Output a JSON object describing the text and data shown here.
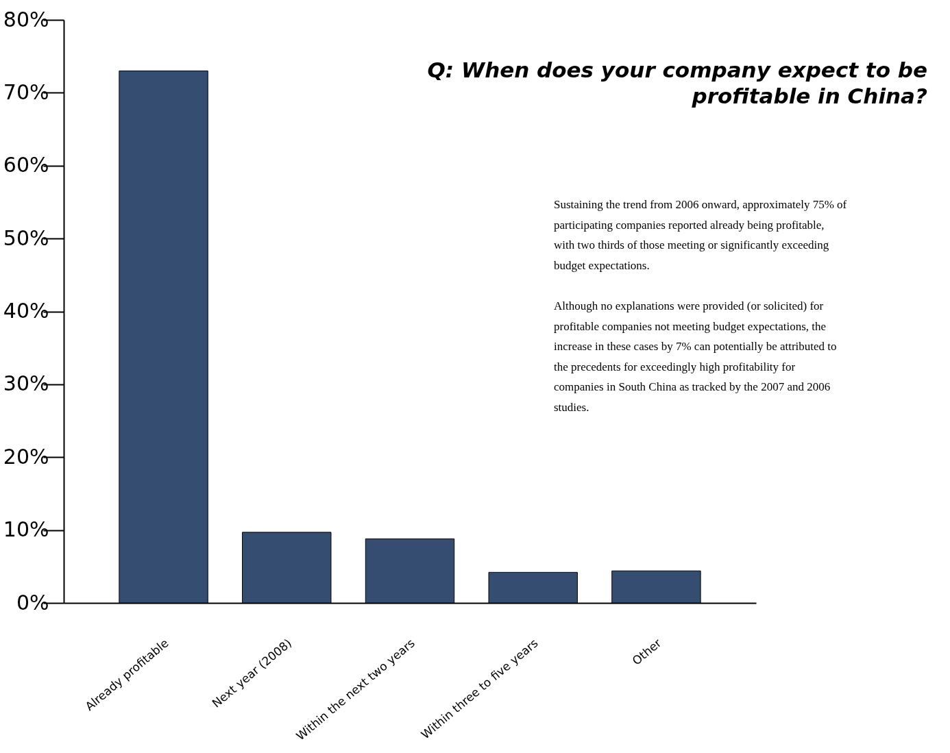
{
  "chart_data": {
    "type": "bar",
    "title": "Q:  When does your company expect to be profitable in China?",
    "categories": [
      "Already profitable",
      "Next year (2008)",
      "Within the next two years",
      "Within three to five years",
      "Other"
    ],
    "values": [
      73,
      9.7,
      8.8,
      4.2,
      4.4
    ],
    "color": "#364d72",
    "ylim": [
      0,
      80
    ],
    "yticks": [
      {
        "value": 0,
        "label": "0%"
      },
      {
        "value": 10,
        "label": "10%"
      },
      {
        "value": 20,
        "label": "20%"
      },
      {
        "value": 30,
        "label": "30%"
      },
      {
        "value": 40,
        "label": "40%"
      },
      {
        "value": 50,
        "label": "50%"
      },
      {
        "value": 60,
        "label": "60%"
      },
      {
        "value": 70,
        "label": "70%"
      },
      {
        "value": 80,
        "label": "80%"
      }
    ],
    "grid": false,
    "annotations": [
      "Sustaining the trend from 2006 onward, approximately 75% of participating companies reported already being profitable, with two thirds of those meeting or significantly exceeding budget expectations.",
      "Although no explanations were provided (or solicited) for profitable companies not meeting budget expectations, the increase in these cases by 7% can potentially be attributed to the precedents for exceedingly high profitability for companies in South China as tracked by the 2007 and 2006 studies."
    ]
  }
}
